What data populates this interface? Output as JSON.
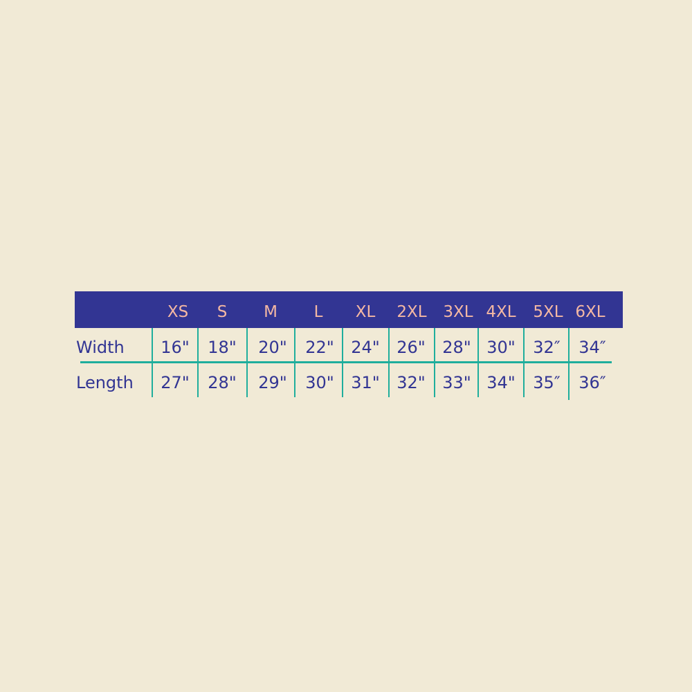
{
  "sizes": [
    "XS",
    "S",
    "M",
    "L",
    "XL",
    "2XL",
    "3XL",
    "4XL",
    "5XL",
    "6XL"
  ],
  "rows": [
    {
      "label": "Width",
      "values": [
        "16\"",
        "18\"",
        "20\"",
        "22\"",
        "24\"",
        "26\"",
        "28\"",
        "30\"",
        "32″",
        "34″"
      ]
    },
    {
      "label": "Length",
      "values": [
        "27\"",
        "28\"",
        "29\"",
        "30\"",
        "31\"",
        "32\"",
        "33\"",
        "34\"",
        "35″",
        "36″"
      ]
    }
  ],
  "colors": {
    "header_bg": "#323593",
    "header_text": "#f4b8a3",
    "body_text": "#323593",
    "grid_lines": "#1fae9c",
    "background": "#f1ead6"
  }
}
